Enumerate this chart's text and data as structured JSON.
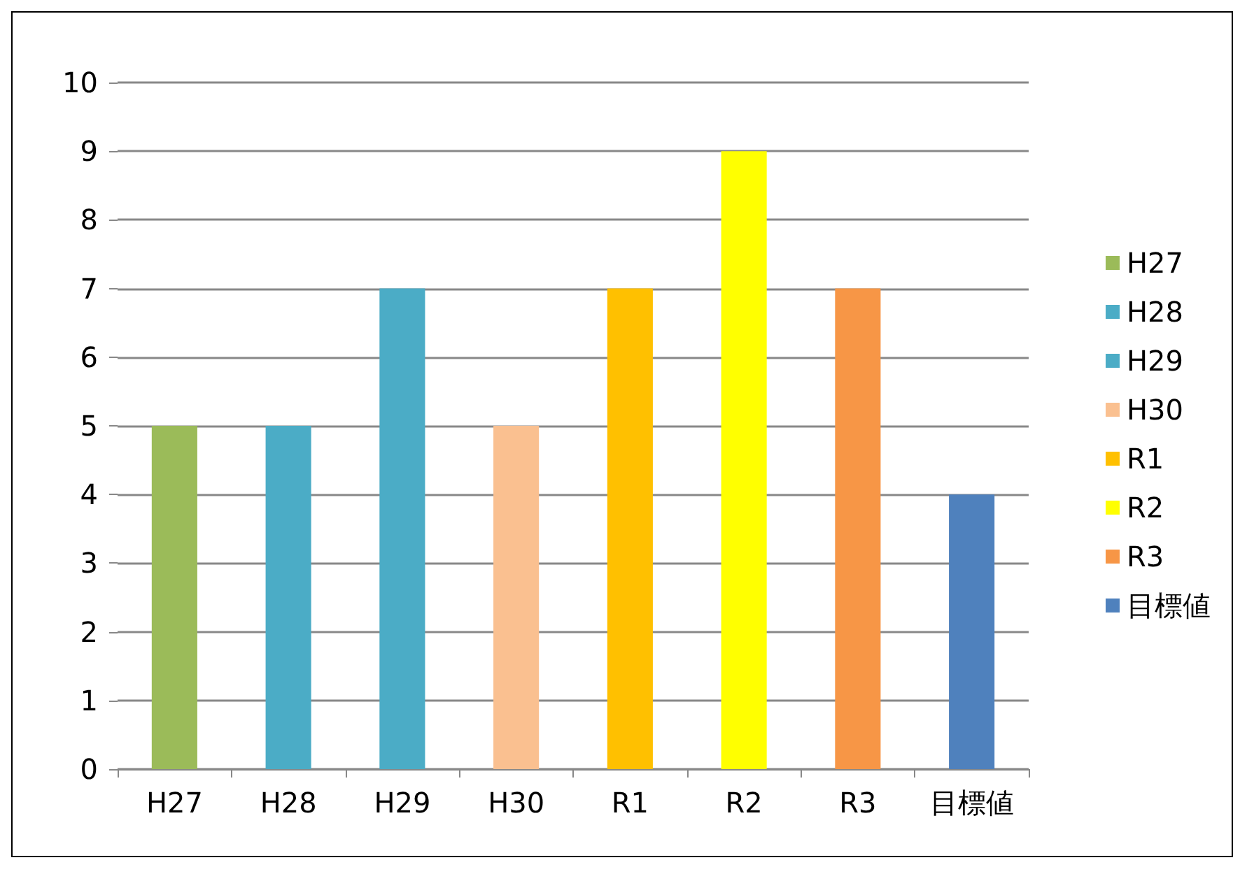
{
  "chart_data": {
    "type": "bar",
    "categories": [
      "H27",
      "H28",
      "H29",
      "H30",
      "R1",
      "R2",
      "R3",
      "目標値"
    ],
    "series": [
      {
        "name": "H27",
        "color": "#9bbb59",
        "values": [
          5,
          null,
          null,
          null,
          null,
          null,
          null,
          null
        ]
      },
      {
        "name": "H28",
        "color": "#4bacc6",
        "values": [
          null,
          5,
          null,
          null,
          null,
          null,
          null,
          null
        ]
      },
      {
        "name": "H29",
        "color": "#4bacc6",
        "values": [
          null,
          null,
          7,
          null,
          null,
          null,
          null,
          null
        ]
      },
      {
        "name": "H30",
        "color": "#fac090",
        "values": [
          null,
          null,
          null,
          5,
          null,
          null,
          null,
          null
        ]
      },
      {
        "name": "R1",
        "color": "#ffc000",
        "values": [
          null,
          null,
          null,
          null,
          7,
          null,
          null,
          null
        ]
      },
      {
        "name": "R2",
        "color": "#ffff00",
        "values": [
          null,
          null,
          null,
          null,
          null,
          9,
          null,
          null
        ]
      },
      {
        "name": "R3",
        "color": "#f79646",
        "values": [
          null,
          null,
          null,
          null,
          null,
          null,
          7,
          null
        ]
      },
      {
        "name": "目標値",
        "color": "#4f81bd",
        "values": [
          null,
          null,
          null,
          null,
          null,
          null,
          null,
          4
        ]
      }
    ],
    "stacked": true,
    "ylim": [
      0,
      10
    ],
    "yticks": [
      0,
      1,
      2,
      3,
      4,
      5,
      6,
      7,
      8,
      9,
      10
    ],
    "grid": "y",
    "legend": "right"
  }
}
